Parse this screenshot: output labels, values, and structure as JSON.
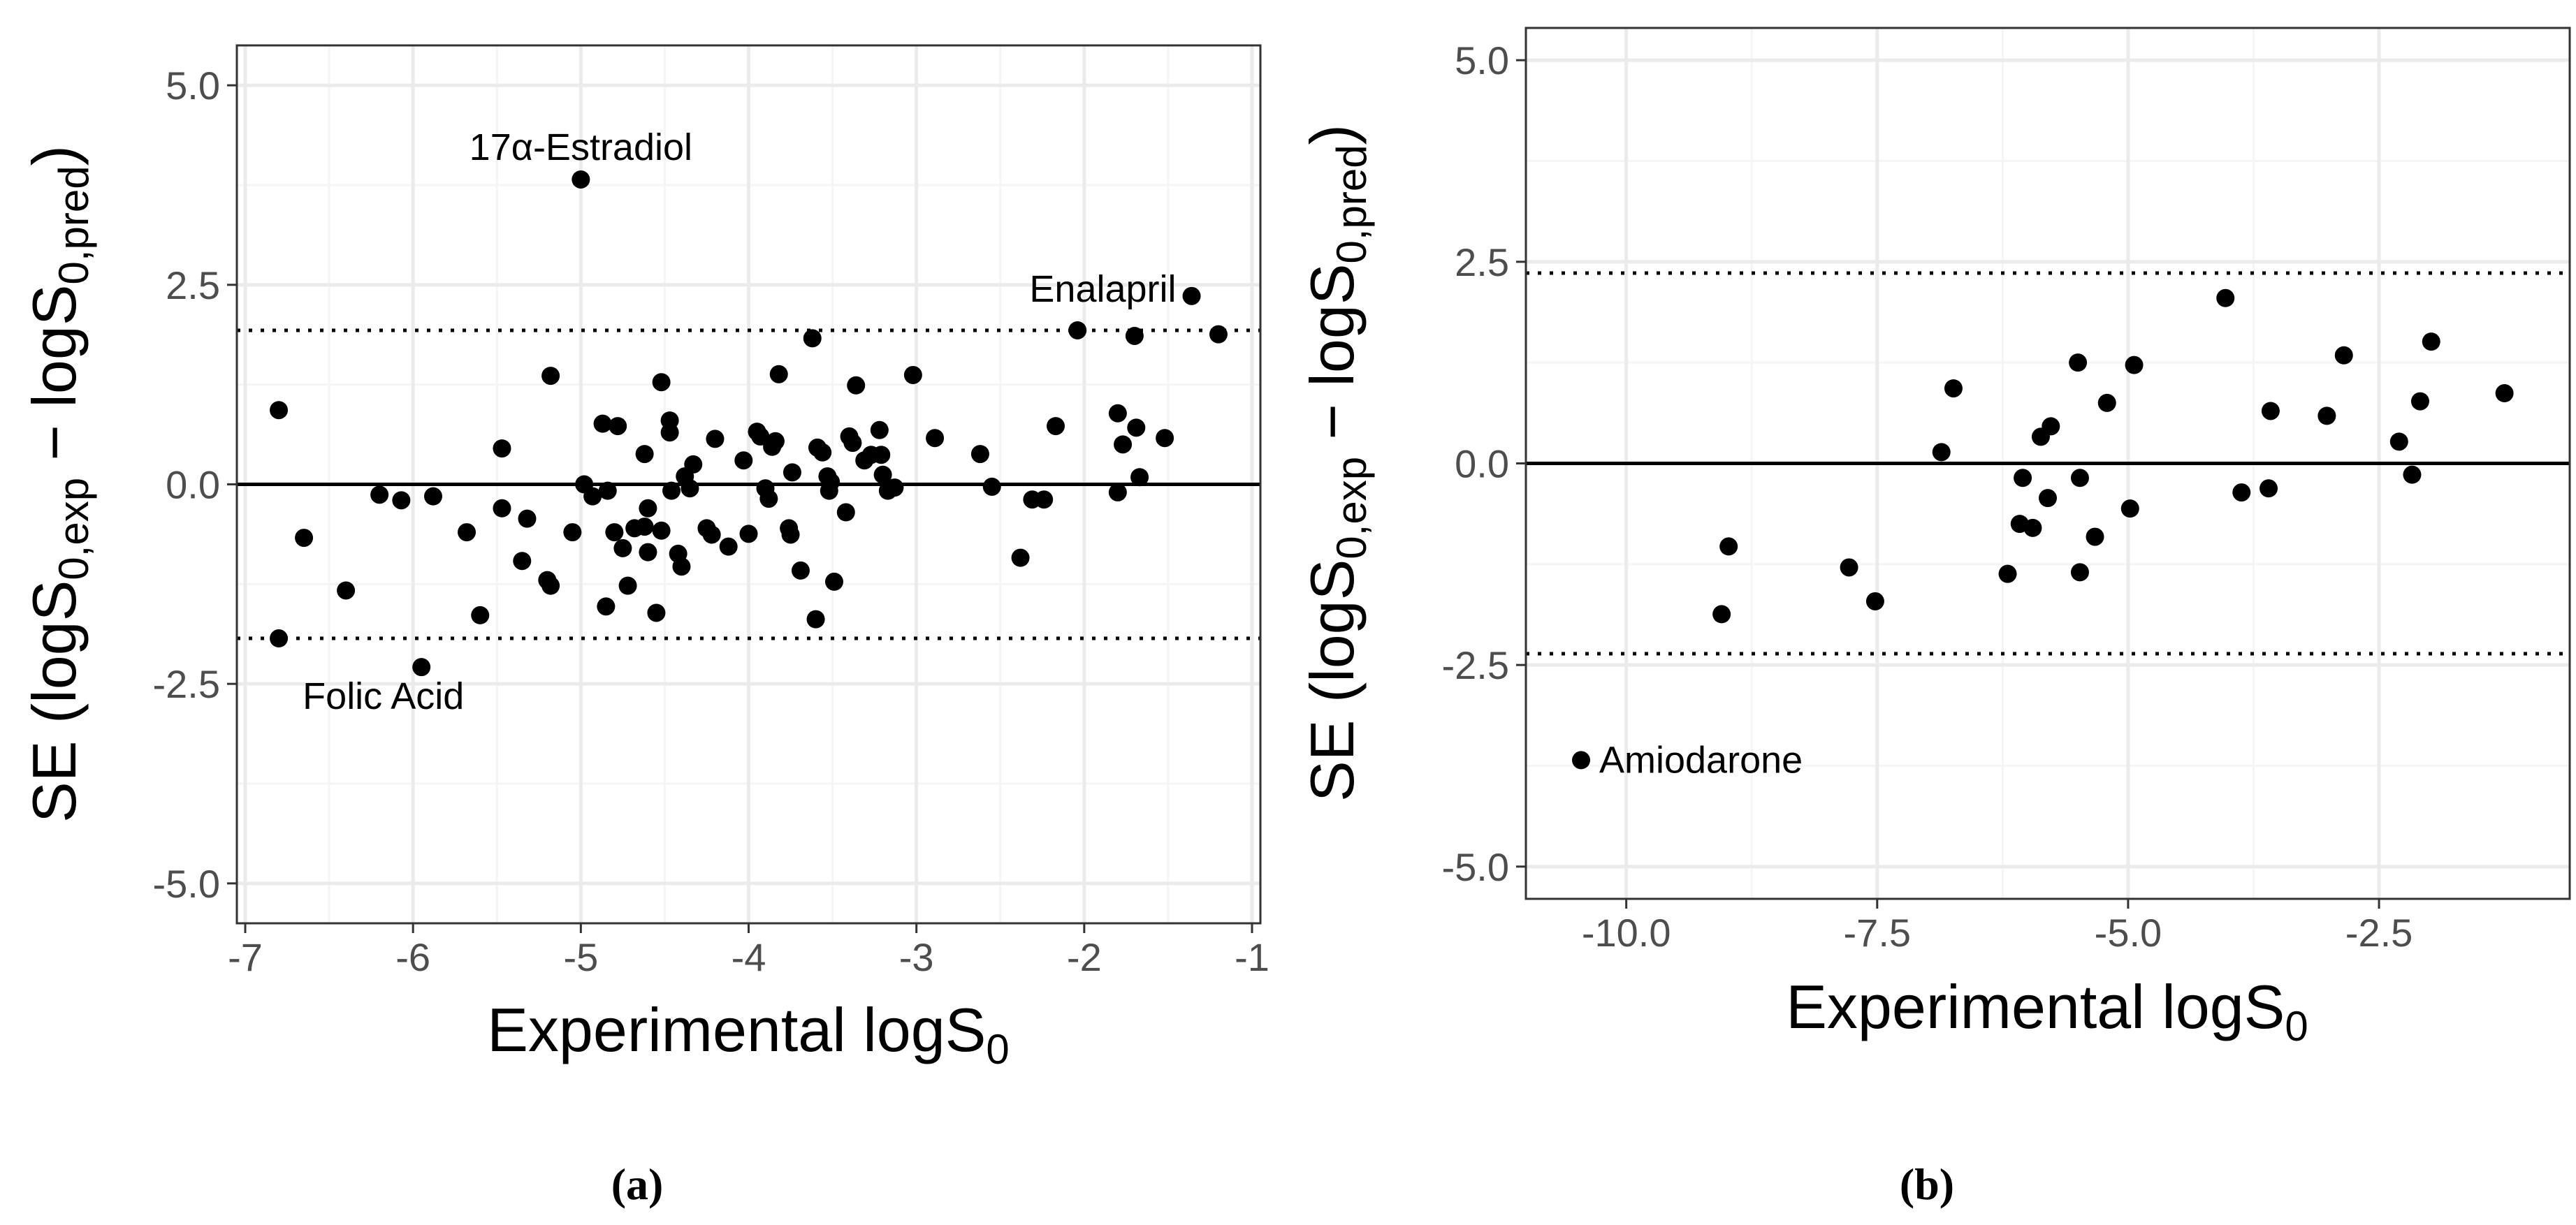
{
  "figure": {
    "label_a": "(a)",
    "label_b": "(b)"
  },
  "colors": {
    "point": "#000000",
    "grid": "#ebebeb",
    "tick_text": "#4d4d4d"
  },
  "chart_data": [
    {
      "type": "scatter",
      "panel": "a",
      "title": "",
      "xlabel": "Experimental logS",
      "xlabel_sub": "0",
      "ylabel": "SE (logS",
      "ylabel_sub1": "0,exp",
      "ylabel_mid": " − logS",
      "ylabel_sub2": "0,pred",
      "ylabel_end": ")",
      "xlim": [
        -7.05,
        -0.95
      ],
      "ylim": [
        -5.5,
        5.5
      ],
      "xticks": [
        -7,
        -6,
        -5,
        -4,
        -3,
        -2,
        -1
      ],
      "xtick_labels": [
        "-7",
        "-6",
        "-5",
        "-4",
        "-3",
        "-2",
        "-1"
      ],
      "yticks": [
        5.0,
        2.5,
        0.0,
        -2.5,
        -5.0
      ],
      "ytick_labels": [
        "5.0",
        "2.5",
        "0.0",
        "-2.5",
        "-5.0"
      ],
      "hlines": {
        "zero": 0.0,
        "upper": 1.93,
        "lower": -1.93
      },
      "annotations": [
        {
          "text": "17α-Estradiol",
          "x": -5.0,
          "y": 3.82
        },
        {
          "text": "Enalapril",
          "x": -1.36,
          "y": 2.36
        },
        {
          "text": "Folic Acid",
          "x": -5.95,
          "y": -2.29
        }
      ],
      "points": [
        [
          -6.8,
          0.93
        ],
        [
          -6.8,
          -1.93
        ],
        [
          -6.65,
          -0.67
        ],
        [
          -6.4,
          -1.33
        ],
        [
          -6.2,
          -0.13
        ],
        [
          -6.07,
          -0.2
        ],
        [
          -5.95,
          -2.29
        ],
        [
          -5.88,
          -0.15
        ],
        [
          -5.68,
          -0.6
        ],
        [
          -5.6,
          -1.64
        ],
        [
          -5.47,
          0.45
        ],
        [
          -5.47,
          -0.3
        ],
        [
          -5.35,
          -0.96
        ],
        [
          -5.32,
          -0.43
        ],
        [
          -5.2,
          -1.2
        ],
        [
          -5.18,
          1.36
        ],
        [
          -5.18,
          -1.27
        ],
        [
          -5.05,
          -0.6
        ],
        [
          -5.0,
          3.82
        ],
        [
          -4.98,
          0.0
        ],
        [
          -4.93,
          -0.15
        ],
        [
          -4.87,
          0.76
        ],
        [
          -4.85,
          -1.53
        ],
        [
          -4.84,
          -0.08
        ],
        [
          -4.8,
          -0.6
        ],
        [
          -4.78,
          0.73
        ],
        [
          -4.75,
          -0.8
        ],
        [
          -4.72,
          -1.27
        ],
        [
          -4.68,
          -0.55
        ],
        [
          -4.62,
          0.38
        ],
        [
          -4.62,
          -0.53
        ],
        [
          -4.6,
          -0.85
        ],
        [
          -4.6,
          -0.3
        ],
        [
          -4.55,
          -1.61
        ],
        [
          -4.52,
          1.28
        ],
        [
          -4.52,
          -0.58
        ],
        [
          -4.47,
          0.8
        ],
        [
          -4.47,
          0.65
        ],
        [
          -4.46,
          -0.08
        ],
        [
          -4.42,
          -0.87
        ],
        [
          -4.4,
          -1.03
        ],
        [
          -4.38,
          0.1
        ],
        [
          -4.35,
          -0.05
        ],
        [
          -4.33,
          0.25
        ],
        [
          -4.25,
          -0.55
        ],
        [
          -4.22,
          -0.63
        ],
        [
          -4.2,
          0.57
        ],
        [
          -4.12,
          -0.78
        ],
        [
          -4.03,
          0.3
        ],
        [
          -4.0,
          -0.62
        ],
        [
          -3.95,
          0.66
        ],
        [
          -3.93,
          0.6
        ],
        [
          -3.9,
          -0.05
        ],
        [
          -3.88,
          -0.18
        ],
        [
          -3.86,
          0.47
        ],
        [
          -3.84,
          0.54
        ],
        [
          -3.82,
          1.38
        ],
        [
          -3.76,
          -0.55
        ],
        [
          -3.75,
          -0.63
        ],
        [
          -3.74,
          0.15
        ],
        [
          -3.69,
          -1.08
        ],
        [
          -3.62,
          1.83
        ],
        [
          -3.6,
          -1.69
        ],
        [
          -3.59,
          0.46
        ],
        [
          -3.56,
          0.4
        ],
        [
          -3.53,
          0.1
        ],
        [
          -3.52,
          -0.08
        ],
        [
          -3.51,
          0.03
        ],
        [
          -3.49,
          -1.22
        ],
        [
          -3.42,
          -0.35
        ],
        [
          -3.4,
          0.6
        ],
        [
          -3.38,
          0.52
        ],
        [
          -3.36,
          1.24
        ],
        [
          -3.31,
          0.3
        ],
        [
          -3.27,
          0.37
        ],
        [
          -3.22,
          0.68
        ],
        [
          -3.21,
          0.37
        ],
        [
          -3.2,
          0.12
        ],
        [
          -3.17,
          -0.08
        ],
        [
          -3.13,
          -0.04
        ],
        [
          -3.02,
          1.37
        ],
        [
          -2.89,
          0.58
        ],
        [
          -2.62,
          0.38
        ],
        [
          -2.55,
          -0.03
        ],
        [
          -2.38,
          -0.92
        ],
        [
          -2.31,
          -0.19
        ],
        [
          -2.24,
          -0.19
        ],
        [
          -2.17,
          0.73
        ],
        [
          -2.04,
          1.93
        ],
        [
          -1.8,
          0.89
        ],
        [
          -1.8,
          -0.1
        ],
        [
          -1.77,
          0.5
        ],
        [
          -1.7,
          1.86
        ],
        [
          -1.69,
          0.71
        ],
        [
          -1.67,
          0.09
        ],
        [
          -1.52,
          0.58
        ],
        [
          -1.36,
          2.36
        ],
        [
          -1.2,
          1.88
        ]
      ]
    },
    {
      "type": "scatter",
      "panel": "b",
      "title": "",
      "xlabel": "Experimental logS",
      "xlabel_sub": "0",
      "ylabel": "SE (logS",
      "ylabel_sub1": "0,exp",
      "ylabel_mid": " − logS",
      "ylabel_sub2": "0,pred",
      "ylabel_end": ")",
      "xlim": [
        -11.0,
        -0.6
      ],
      "ylim": [
        -5.4,
        5.4
      ],
      "xticks": [
        -10.0,
        -7.5,
        -5.0,
        -2.5
      ],
      "xtick_labels": [
        "-10.0",
        "-7.5",
        "-5.0",
        "-2.5"
      ],
      "yticks": [
        5.0,
        2.5,
        0.0,
        -2.5,
        -5.0
      ],
      "ytick_labels": [
        "5.0",
        "2.5",
        "0.0",
        "-2.5",
        "-5.0"
      ],
      "hlines": {
        "zero": 0.0,
        "upper": 2.36,
        "lower": -2.36
      },
      "annotations": [
        {
          "text": "Amiodarone",
          "x": -10.45,
          "y": -3.68
        }
      ],
      "points": [
        [
          -10.45,
          -3.68
        ],
        [
          -9.05,
          -1.87
        ],
        [
          -8.98,
          -1.03
        ],
        [
          -7.78,
          -1.29
        ],
        [
          -7.52,
          -1.71
        ],
        [
          -6.86,
          0.14
        ],
        [
          -6.74,
          0.93
        ],
        [
          -6.2,
          -1.37
        ],
        [
          -6.08,
          -0.75
        ],
        [
          -6.05,
          -0.18
        ],
        [
          -5.95,
          -0.8
        ],
        [
          -5.87,
          0.33
        ],
        [
          -5.8,
          -0.43
        ],
        [
          -5.77,
          0.46
        ],
        [
          -5.5,
          1.25
        ],
        [
          -5.48,
          -0.18
        ],
        [
          -5.48,
          -1.35
        ],
        [
          -5.33,
          -0.91
        ],
        [
          -5.21,
          0.75
        ],
        [
          -4.98,
          -0.56
        ],
        [
          -4.94,
          1.22
        ],
        [
          -4.03,
          2.05
        ],
        [
          -3.87,
          -0.36
        ],
        [
          -3.6,
          -0.31
        ],
        [
          -3.58,
          0.65
        ],
        [
          -3.02,
          0.59
        ],
        [
          -2.85,
          1.34
        ],
        [
          -2.3,
          0.27
        ],
        [
          -2.17,
          -0.14
        ],
        [
          -2.09,
          0.77
        ],
        [
          -1.98,
          1.51
        ],
        [
          -1.25,
          0.87
        ]
      ]
    }
  ]
}
